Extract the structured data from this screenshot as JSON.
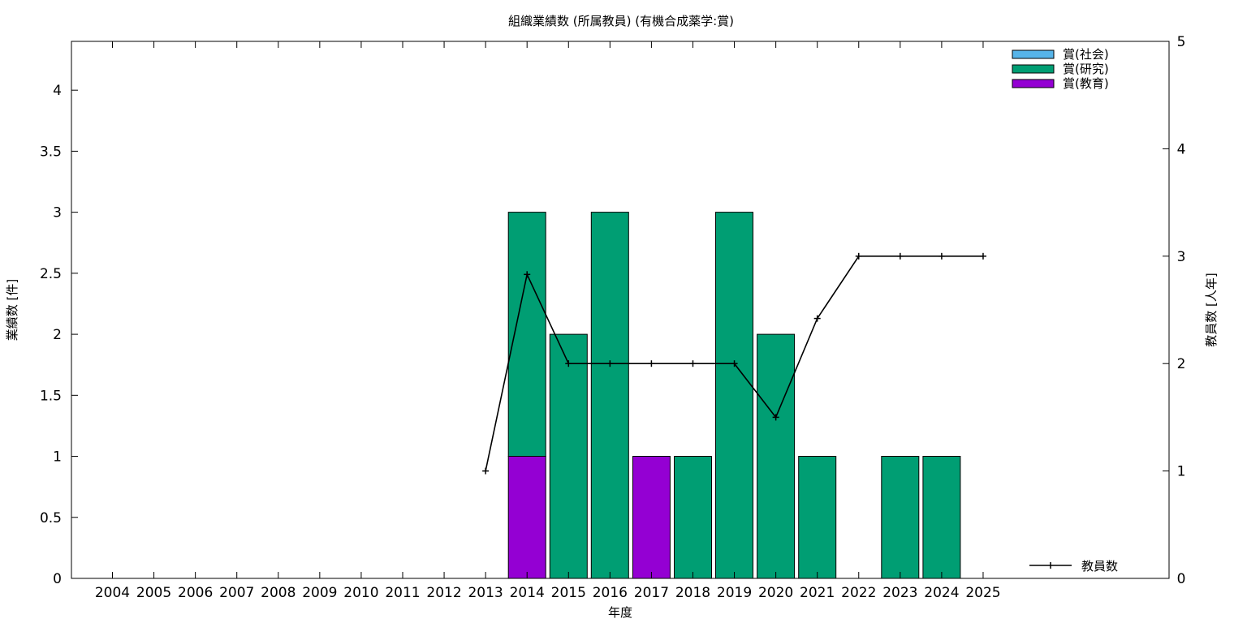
{
  "chart_data": {
    "type": "bar",
    "title": "組織業績数 (所属教員) (有機合成薬学:賞)",
    "xlabel": "年度",
    "ylabel": "業績数 [件]",
    "y2label": "教員数 [人年]",
    "categories": [
      "2004",
      "2005",
      "2006",
      "2007",
      "2008",
      "2009",
      "2010",
      "2011",
      "2012",
      "2013",
      "2014",
      "2015",
      "2016",
      "2017",
      "2018",
      "2019",
      "2020",
      "2021",
      "2022",
      "2023",
      "2024",
      "2025"
    ],
    "stacked": true,
    "ylim": [
      0,
      4.4
    ],
    "yticks": [
      0,
      0.5,
      1,
      1.5,
      2,
      2.5,
      3,
      3.5,
      4
    ],
    "ytick_labels": [
      "0",
      "0.5",
      "1",
      "1.5",
      "2",
      "2.5",
      "3",
      "3.5",
      "4"
    ],
    "y2lim": [
      0,
      5
    ],
    "y2ticks": [
      0,
      1,
      2,
      3,
      4,
      5
    ],
    "y2tick_labels": [
      "0",
      "1",
      "2",
      "3",
      "4",
      "5"
    ],
    "series": [
      {
        "name": "賞(教育)",
        "color": "#9400d3",
        "values": [
          0,
          0,
          0,
          0,
          0,
          0,
          0,
          0,
          0,
          0,
          1,
          0,
          0,
          1,
          0,
          0,
          0,
          0,
          0,
          0,
          0,
          0
        ]
      },
      {
        "name": "賞(研究)",
        "color": "#009e73",
        "values": [
          0,
          0,
          0,
          0,
          0,
          0,
          0,
          0,
          0,
          0,
          2,
          2,
          3,
          0,
          1,
          3,
          2,
          1,
          0,
          1,
          1,
          0
        ]
      },
      {
        "name": "賞(社会)",
        "color": "#56b4e9",
        "values": [
          0,
          0,
          0,
          0,
          0,
          0,
          0,
          0,
          0,
          0,
          0,
          0,
          0,
          0,
          0,
          0,
          0,
          0,
          0,
          0,
          0,
          0
        ]
      }
    ],
    "line_series": {
      "name": "教員数",
      "axis": "y2",
      "color": "#000000",
      "start_index": 9,
      "values": [
        1,
        2.83,
        2,
        2,
        2,
        2,
        2,
        1.5,
        2.42,
        3,
        3,
        3,
        3
      ]
    },
    "legend_position": "top-right",
    "line_legend_position": "bottom-right",
    "grid": false
  }
}
